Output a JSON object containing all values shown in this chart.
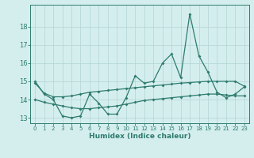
{
  "xlabel": "Humidex (Indice chaleur)",
  "x": [
    0,
    1,
    2,
    3,
    4,
    5,
    6,
    7,
    8,
    9,
    10,
    11,
    12,
    13,
    14,
    15,
    16,
    17,
    18,
    19,
    20,
    21,
    22,
    23
  ],
  "line_main": [
    15.0,
    14.3,
    14.0,
    13.1,
    13.0,
    13.1,
    14.3,
    13.8,
    13.2,
    13.2,
    14.1,
    15.3,
    14.9,
    15.0,
    16.0,
    16.5,
    15.2,
    18.7,
    16.4,
    15.5,
    14.4,
    14.1,
    14.3,
    14.7
  ],
  "line_upper": [
    14.9,
    14.35,
    14.15,
    14.15,
    14.2,
    14.3,
    14.4,
    14.45,
    14.5,
    14.55,
    14.6,
    14.65,
    14.7,
    14.75,
    14.8,
    14.85,
    14.9,
    14.93,
    14.97,
    15.0,
    15.0,
    15.0,
    15.0,
    14.73
  ],
  "line_lower": [
    14.0,
    13.85,
    13.75,
    13.65,
    13.55,
    13.5,
    13.5,
    13.55,
    13.6,
    13.65,
    13.75,
    13.85,
    13.95,
    14.0,
    14.05,
    14.1,
    14.15,
    14.2,
    14.25,
    14.3,
    14.3,
    14.25,
    14.2,
    14.2
  ],
  "line_color": "#2e7b6e",
  "bg_color": "#d4eeee",
  "grid_color": "#b8d8d8",
  "ylim": [
    12.7,
    19.2
  ],
  "xlim": [
    -0.5,
    23.5
  ],
  "yticks": [
    13,
    14,
    15,
    16,
    17,
    18
  ],
  "xticks": [
    0,
    1,
    2,
    3,
    4,
    5,
    6,
    7,
    8,
    9,
    10,
    11,
    12,
    13,
    14,
    15,
    16,
    17,
    18,
    19,
    20,
    21,
    22,
    23
  ],
  "marker_size": 2.0,
  "line_width": 0.9
}
